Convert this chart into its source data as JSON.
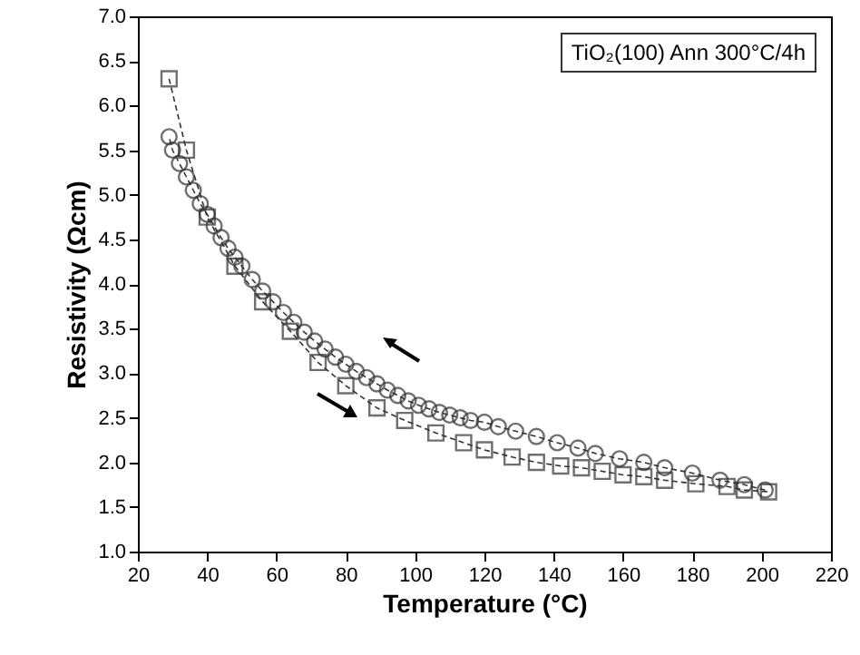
{
  "chart_data": {
    "type": "line",
    "xlabel": "Temperature (°C)",
    "ylabel": "Resistivity (Ωcm)",
    "annotations": [
      "TiO₂(100) Ann 300°C/4h"
    ],
    "xlim": [
      20,
      220
    ],
    "xticks": [
      20,
      40,
      60,
      80,
      100,
      120,
      140,
      160,
      180,
      200,
      220
    ],
    "ylim": [
      1,
      7
    ],
    "yticks": [
      {
        "value": 1,
        "label": "1.0"
      },
      {
        "value": 1.5,
        "label": "1.5"
      },
      {
        "value": 2,
        "label": "2.0"
      },
      {
        "value": 2.5,
        "label": "2.5"
      },
      {
        "value": 3,
        "label": "3.0"
      },
      {
        "value": 3.5,
        "label": "3.5"
      },
      {
        "value": 4,
        "label": "4.0"
      },
      {
        "value": 4.5,
        "label": "4.5"
      },
      {
        "value": 5,
        "label": "5.0"
      },
      {
        "value": 5.5,
        "label": "5.5"
      },
      {
        "value": 6,
        "label": "6.0"
      },
      {
        "value": 6.5,
        "label": "6.5"
      },
      {
        "value": 7,
        "label": "7.0"
      }
    ],
    "grid": false,
    "line_style": "dashed",
    "series": [
      {
        "color": "#333333",
        "marker": "square",
        "x": [
          29,
          34,
          40,
          48,
          56,
          64,
          72,
          80,
          89,
          97,
          106,
          114,
          120,
          128,
          135,
          142,
          148,
          154,
          160,
          166,
          172,
          181,
          190,
          195,
          202
        ],
        "values": [
          6.3,
          5.5,
          4.75,
          4.2,
          3.8,
          3.47,
          3.12,
          2.86,
          2.61,
          2.47,
          2.33,
          2.22,
          2.14,
          2.06,
          2.0,
          1.96,
          1.94,
          1.9,
          1.86,
          1.84,
          1.8,
          1.76,
          1.73,
          1.69,
          1.67
        ]
      },
      {
        "color": "#333333",
        "marker": "circle",
        "x": [
          201,
          195,
          188,
          180,
          172,
          166,
          159,
          152,
          147,
          141,
          135,
          129,
          124,
          120,
          116,
          113,
          110,
          107,
          104,
          101,
          98,
          95,
          92,
          89,
          86,
          83,
          80,
          77,
          74,
          71,
          68,
          65,
          62,
          59,
          56,
          53,
          50,
          48,
          46,
          44,
          42,
          40,
          38,
          36,
          34,
          32,
          30,
          29
        ],
        "values": [
          1.69,
          1.75,
          1.8,
          1.88,
          1.94,
          2.0,
          2.04,
          2.1,
          2.16,
          2.22,
          2.29,
          2.35,
          2.4,
          2.45,
          2.47,
          2.5,
          2.53,
          2.56,
          2.6,
          2.64,
          2.69,
          2.75,
          2.81,
          2.88,
          2.95,
          3.02,
          3.1,
          3.18,
          3.27,
          3.36,
          3.46,
          3.57,
          3.68,
          3.8,
          3.92,
          4.05,
          4.2,
          4.3,
          4.4,
          4.52,
          4.65,
          4.78,
          4.9,
          5.05,
          5.2,
          5.35,
          5.5,
          5.65
        ]
      }
    ]
  }
}
